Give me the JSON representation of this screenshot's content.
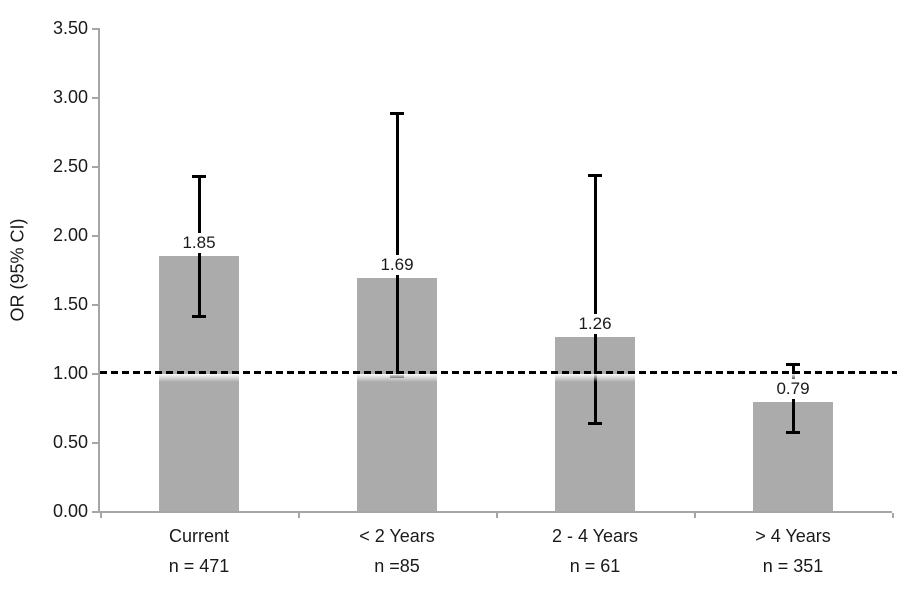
{
  "chart_data": {
    "type": "bar",
    "title": "",
    "ylabel": "OR (95% CI)",
    "xlabel": "",
    "categories": [
      "Current",
      "< 2 Years",
      "2 - 4 Years",
      "> 4 Years"
    ],
    "sample_size_labels": [
      "n = 471",
      "n =85",
      "n = 61",
      "n = 351"
    ],
    "series": [
      {
        "name": "Odds Ratio",
        "values": [
          1.85,
          1.69,
          1.26,
          0.79
        ],
        "value_labels": [
          "1.85",
          "1.69",
          "1.26",
          "0.79"
        ],
        "ci_low": [
          1.41,
          0.98,
          0.64,
          0.57
        ],
        "ci_high": [
          2.42,
          2.88,
          2.43,
          1.06
        ]
      }
    ],
    "ylim": [
      0,
      3.5
    ],
    "ytick_step": 0.5,
    "ytick_labels": [
      "0.00",
      "0.50",
      "1.00",
      "1.50",
      "2.00",
      "2.50",
      "3.00",
      "3.50"
    ],
    "reference_line": {
      "value": 1.0,
      "style": "dashed",
      "color": "#000000"
    },
    "grid": false,
    "legend": "none",
    "colors": {
      "bar_fill": "#ABABAB",
      "error_bar": "#000000",
      "axis_line": "#A6A6A6",
      "tick_text": "#1A1A1A",
      "background": "#FFFFFF"
    }
  }
}
